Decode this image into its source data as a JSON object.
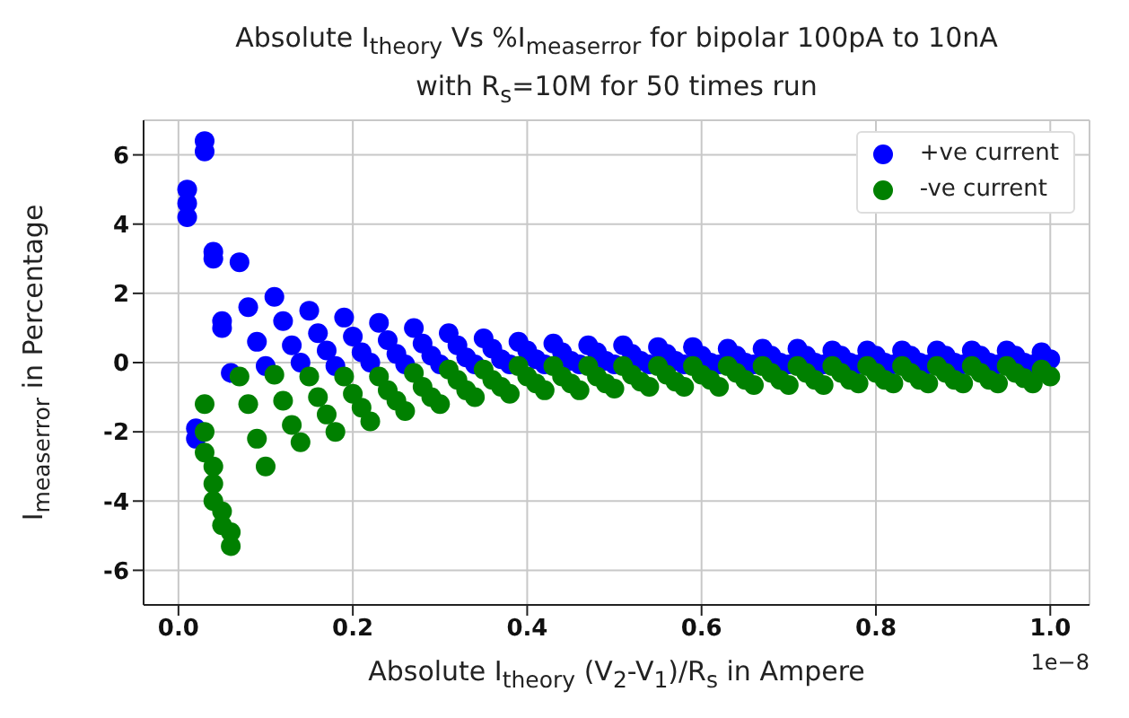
{
  "chart_data": {
    "type": "scatter",
    "title": "Absolute I$_{theory}$ Vs %I$_{measerror}$ for bipolar 100pA to 10nA\nwith R$_{s}$=10M for 50 times run",
    "xlabel": "Absolute I$_{theory}$ (V$_{2}$-V$_{1}$)/R$_{s}$ in Ampere",
    "ylabel": "I$_{measerror}$ in Percentage",
    "annotations": [
      "1e−8"
    ],
    "xlim": [
      -0.04,
      1.045
    ],
    "xticks": [
      {
        "value": 0,
        "label": "0.0"
      },
      {
        "value": 0.2,
        "label": "0.2"
      },
      {
        "value": 0.4,
        "label": "0.4"
      },
      {
        "value": 0.6,
        "label": "0.6"
      },
      {
        "value": 0.8,
        "label": "0.8"
      },
      {
        "value": 1,
        "label": "1.0"
      }
    ],
    "ylim": [
      -7,
      7
    ],
    "yticks": [
      -6,
      -4,
      -2,
      0,
      2,
      4,
      6
    ],
    "grid": true,
    "legend": "top right",
    "marker": "circle",
    "series": [
      {
        "name": "+ve current",
        "color": "#0000ff",
        "x": [
          0.01,
          0.01,
          0.01,
          0.02,
          0.02,
          0.03,
          0.03,
          0.04,
          0.04,
          0.05,
          0.05,
          0.06,
          0.07,
          0.08,
          0.09,
          0.1,
          0.11,
          0.12,
          0.13,
          0.14,
          0.15,
          0.16,
          0.17,
          0.18,
          0.19,
          0.2,
          0.21,
          0.22,
          0.23,
          0.24,
          0.25,
          0.26,
          0.27,
          0.28,
          0.29,
          0.3,
          0.31,
          0.32,
          0.33,
          0.34,
          0.35,
          0.36,
          0.37,
          0.38,
          0.39,
          0.4,
          0.41,
          0.42,
          0.43,
          0.44,
          0.45,
          0.46,
          0.47,
          0.48,
          0.49,
          0.5,
          0.51,
          0.52,
          0.53,
          0.54,
          0.55,
          0.56,
          0.57,
          0.58,
          0.59,
          0.6,
          0.61,
          0.62,
          0.63,
          0.64,
          0.65,
          0.66,
          0.67,
          0.68,
          0.69,
          0.7,
          0.71,
          0.72,
          0.73,
          0.74,
          0.75,
          0.76,
          0.77,
          0.78,
          0.79,
          0.8,
          0.81,
          0.82,
          0.83,
          0.84,
          0.85,
          0.86,
          0.87,
          0.88,
          0.89,
          0.9,
          0.91,
          0.92,
          0.93,
          0.94,
          0.95,
          0.96,
          0.97,
          0.98,
          0.99,
          1.0
        ],
        "values": [
          4.2,
          4.6,
          5.0,
          -1.9,
          -2.2,
          6.1,
          6.4,
          3.0,
          3.2,
          1.0,
          1.2,
          -0.3,
          2.9,
          1.6,
          0.6,
          -0.1,
          1.9,
          1.2,
          0.5,
          0.0,
          1.5,
          0.85,
          0.35,
          -0.1,
          1.3,
          0.75,
          0.3,
          0.0,
          1.15,
          0.65,
          0.25,
          -0.05,
          1.0,
          0.55,
          0.2,
          -0.05,
          0.85,
          0.5,
          0.15,
          -0.05,
          0.7,
          0.4,
          0.1,
          -0.05,
          0.6,
          0.35,
          0.1,
          -0.05,
          0.55,
          0.3,
          0.05,
          -0.05,
          0.5,
          0.3,
          0.05,
          -0.05,
          0.5,
          0.25,
          0.05,
          -0.05,
          0.45,
          0.25,
          0.05,
          -0.05,
          0.45,
          0.2,
          0.0,
          -0.05,
          0.4,
          0.2,
          0.0,
          -0.05,
          0.4,
          0.2,
          0.0,
          -0.05,
          0.4,
          0.2,
          0.0,
          -0.05,
          0.35,
          0.2,
          0.0,
          -0.05,
          0.35,
          0.2,
          0.0,
          -0.05,
          0.35,
          0.2,
          0.0,
          -0.05,
          0.35,
          0.2,
          0.0,
          -0.05,
          0.35,
          0.2,
          0.0,
          -0.05,
          0.35,
          0.2,
          0.0,
          -0.05,
          0.3,
          0.1
        ]
      },
      {
        "name": "-ve current",
        "color": "#008000",
        "x": [
          0.03,
          0.03,
          0.03,
          0.04,
          0.04,
          0.04,
          0.05,
          0.05,
          0.06,
          0.06,
          0.07,
          0.08,
          0.09,
          0.1,
          0.11,
          0.12,
          0.13,
          0.14,
          0.15,
          0.16,
          0.17,
          0.18,
          0.19,
          0.2,
          0.21,
          0.22,
          0.23,
          0.24,
          0.25,
          0.26,
          0.27,
          0.28,
          0.29,
          0.3,
          0.31,
          0.32,
          0.33,
          0.34,
          0.35,
          0.36,
          0.37,
          0.38,
          0.39,
          0.4,
          0.41,
          0.42,
          0.43,
          0.44,
          0.45,
          0.46,
          0.47,
          0.48,
          0.49,
          0.5,
          0.51,
          0.52,
          0.53,
          0.54,
          0.55,
          0.56,
          0.57,
          0.58,
          0.59,
          0.6,
          0.61,
          0.62,
          0.63,
          0.64,
          0.65,
          0.66,
          0.67,
          0.68,
          0.69,
          0.7,
          0.71,
          0.72,
          0.73,
          0.74,
          0.75,
          0.76,
          0.77,
          0.78,
          0.79,
          0.8,
          0.81,
          0.82,
          0.83,
          0.84,
          0.85,
          0.86,
          0.87,
          0.88,
          0.89,
          0.9,
          0.91,
          0.92,
          0.93,
          0.94,
          0.95,
          0.96,
          0.97,
          0.98,
          0.99,
          1.0
        ],
        "values": [
          -1.2,
          -2.0,
          -2.6,
          -3.0,
          -3.5,
          -4.0,
          -4.3,
          -4.7,
          -4.9,
          -5.3,
          -0.4,
          -1.2,
          -2.2,
          -3.0,
          -0.35,
          -1.1,
          -1.8,
          -2.3,
          -0.4,
          -1.0,
          -1.5,
          -2.0,
          -0.4,
          -0.9,
          -1.3,
          -1.7,
          -0.4,
          -0.8,
          -1.1,
          -1.4,
          -0.3,
          -0.7,
          -1.0,
          -1.2,
          -0.2,
          -0.5,
          -0.8,
          -1.0,
          -0.2,
          -0.5,
          -0.7,
          -0.9,
          -0.1,
          -0.4,
          -0.6,
          -0.8,
          -0.1,
          -0.4,
          -0.6,
          -0.8,
          -0.1,
          -0.4,
          -0.6,
          -0.75,
          -0.1,
          -0.35,
          -0.55,
          -0.7,
          -0.1,
          -0.35,
          -0.55,
          -0.7,
          -0.1,
          -0.35,
          -0.5,
          -0.7,
          -0.1,
          -0.3,
          -0.5,
          -0.65,
          -0.1,
          -0.3,
          -0.5,
          -0.65,
          -0.1,
          -0.3,
          -0.5,
          -0.65,
          -0.1,
          -0.3,
          -0.5,
          -0.6,
          -0.1,
          -0.3,
          -0.5,
          -0.6,
          -0.1,
          -0.3,
          -0.5,
          -0.6,
          -0.1,
          -0.3,
          -0.5,
          -0.6,
          -0.1,
          -0.3,
          -0.5,
          -0.6,
          -0.1,
          -0.3,
          -0.45,
          -0.6,
          -0.2,
          -0.4
        ]
      }
    ]
  }
}
